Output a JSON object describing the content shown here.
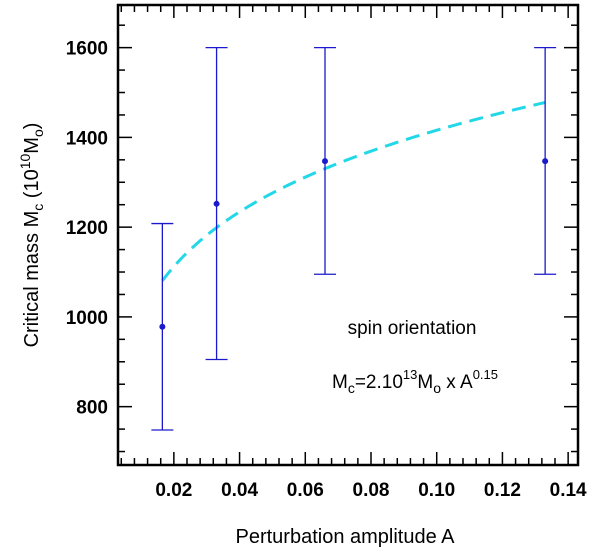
{
  "chart_data": {
    "type": "scatter",
    "xlabel": "Perturbation amplitude A",
    "ylabel": {
      "prefix": "Critical mass M",
      "prefix_sub": "c",
      "middle": " (10",
      "middle_sup": "10",
      "unit": "M",
      "unit_sub": "o",
      "suffix": ")"
    },
    "xlim": [
      0.003,
      0.143
    ],
    "ylim": [
      670,
      1695
    ],
    "x_ticks": [
      0.02,
      0.04,
      0.06,
      0.08,
      0.1,
      0.12,
      0.14
    ],
    "x_tick_labels": [
      "0.02",
      "0.04",
      "0.06",
      "0.08",
      "0.10",
      "0.12",
      "0.14"
    ],
    "y_ticks": [
      800,
      1000,
      1200,
      1400,
      1600
    ],
    "y_tick_labels": [
      "800",
      "1000",
      "1200",
      "1400",
      "1600"
    ],
    "grid": false,
    "points": {
      "color": "#1a1acc",
      "x": [
        0.0165,
        0.033,
        0.066,
        0.133
      ],
      "y": [
        978,
        1252,
        1347,
        1347
      ],
      "y_low": [
        748,
        905,
        1095,
        1095
      ],
      "y_high": [
        1208,
        1600,
        1600,
        1600
      ]
    },
    "fit": {
      "color": "#22d8e8",
      "style": "dashed",
      "coefficient": 20000000000000.0,
      "exponent": 0.15,
      "x_range": [
        0.0165,
        0.133
      ]
    },
    "annotations": {
      "line1": "spin orientation",
      "formula_lhs": "M",
      "formula_lhs_sub": "c",
      "formula_eq": "=2.10",
      "formula_exp": "13",
      "formula_unit": "M",
      "formula_unit_sub": "o",
      "formula_times": " x A",
      "formula_pow": "0.15"
    }
  }
}
